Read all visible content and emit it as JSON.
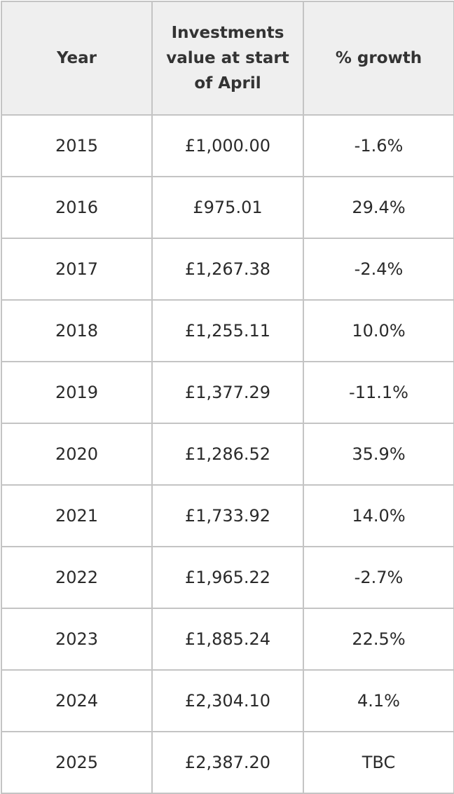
{
  "table": {
    "headers": [
      "Year",
      "Investments value at start of April",
      "% growth"
    ],
    "rows": [
      {
        "year": "2015",
        "value": "£1,000.00",
        "growth": "-1.6%"
      },
      {
        "year": "2016",
        "value": "£975.01",
        "growth": "29.4%"
      },
      {
        "year": "2017",
        "value": "£1,267.38",
        "growth": "-2.4%"
      },
      {
        "year": "2018",
        "value": "£1,255.11",
        "growth": "10.0%"
      },
      {
        "year": "2019",
        "value": "£1,377.29",
        "growth": "-11.1%"
      },
      {
        "year": "2020",
        "value": "£1,286.52",
        "growth": "35.9%"
      },
      {
        "year": "2021",
        "value": "£1,733.92",
        "growth": "14.0%"
      },
      {
        "year": "2022",
        "value": "£1,965.22",
        "growth": "-2.7%"
      },
      {
        "year": "2023",
        "value": "£1,885.24",
        "growth": "22.5%"
      },
      {
        "year": "2024",
        "value": "£2,304.10",
        "growth": "4.1%"
      },
      {
        "year": "2025",
        "value": "£2,387.20",
        "growth": "TBC"
      }
    ]
  }
}
